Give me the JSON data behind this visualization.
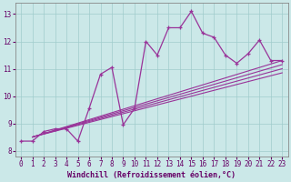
{
  "title": "",
  "xlabel": "Windchill (Refroidissement éolien,°C)",
  "bg_color": "#cbe8e8",
  "line_color": "#993399",
  "xlim": [
    -0.5,
    23.5
  ],
  "ylim": [
    7.8,
    13.4
  ],
  "xticks": [
    0,
    1,
    2,
    3,
    4,
    5,
    6,
    7,
    8,
    9,
    10,
    11,
    12,
    13,
    14,
    15,
    16,
    17,
    18,
    19,
    20,
    21,
    22,
    23
  ],
  "yticks": [
    8,
    9,
    10,
    11,
    12,
    13
  ],
  "main_y": [
    8.35,
    8.35,
    8.7,
    8.8,
    8.8,
    8.35,
    9.55,
    10.8,
    11.05,
    8.95,
    9.55,
    12.0,
    11.5,
    12.5,
    12.5,
    13.1,
    12.3,
    12.15,
    11.5,
    11.2,
    11.55,
    12.05,
    11.3,
    11.3
  ],
  "straight_lines": [
    {
      "x0": 1,
      "y0": 8.5,
      "x1": 23,
      "y1": 11.3
    },
    {
      "x0": 1,
      "y0": 8.5,
      "x1": 23,
      "y1": 11.15
    },
    {
      "x0": 1,
      "y0": 8.5,
      "x1": 23,
      "y1": 11.0
    },
    {
      "x0": 1,
      "y0": 8.5,
      "x1": 23,
      "y1": 10.85
    }
  ],
  "tick_fontsize": 5.5,
  "xlabel_fontsize": 6.0
}
